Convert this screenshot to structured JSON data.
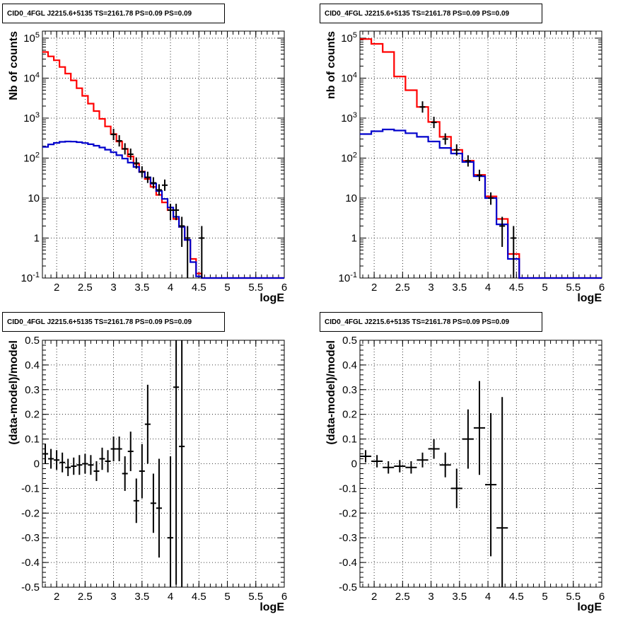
{
  "colors": {
    "data": "#000000",
    "total_model": "#ff0000",
    "source_model": "#0000cc",
    "grid": "#000000"
  },
  "chart_data": [
    {
      "type": "step",
      "title": "CID0_4FGL J2215.6+5135 TS=2161.78 PS=0.09 PS=0.09",
      "xlabel": "logE",
      "ylabel": "Nb of counts",
      "xlim": [
        1.75,
        6.0
      ],
      "ylim": [
        0.1,
        150000
      ],
      "yscale": "log",
      "grid": true,
      "x_ticks": [
        "2",
        "2.5",
        "3",
        "3.5",
        "4",
        "4.5",
        "5",
        "5.5",
        "6"
      ],
      "y_ticks": [
        "10^-1",
        "1",
        "10",
        "10^2",
        "10^3",
        "10^4",
        "10^5"
      ],
      "bin_edges": [
        1.75,
        1.85,
        1.95,
        2.05,
        2.15,
        2.25,
        2.35,
        2.45,
        2.55,
        2.65,
        2.75,
        2.85,
        2.95,
        3.05,
        3.15,
        3.25,
        3.35,
        3.45,
        3.55,
        3.65,
        3.75,
        3.85,
        3.95,
        4.05,
        4.15,
        4.25,
        4.35,
        4.45,
        4.55,
        4.65,
        4.75,
        4.85,
        4.95,
        5.05,
        5.15,
        5.25,
        5.35,
        5.45,
        5.55,
        5.65,
        5.75,
        5.85,
        5.95,
        6.0
      ],
      "series": [
        {
          "role": "total_model",
          "values": [
            45000,
            35000,
            28000,
            19000,
            13000,
            8800,
            5600,
            3600,
            2300,
            1500,
            960,
            620,
            400,
            260,
            170,
            110,
            72,
            46,
            30,
            19,
            12,
            7.8,
            5.0,
            3.0,
            1.9,
            0.9,
            0.3,
            0.13,
            0.1,
            0.1,
            0.1,
            0.1,
            0.1,
            0.1,
            0.1,
            0.1,
            0.1,
            0.1,
            0.1,
            0.1,
            0.1,
            0.1,
            0.1
          ]
        },
        {
          "role": "source_model",
          "values": [
            190,
            220,
            240,
            255,
            260,
            258,
            250,
            238,
            222,
            204,
            184,
            162,
            140,
            118,
            97,
            77,
            60,
            45,
            33,
            23,
            15,
            9.5,
            5.8,
            3.4,
            1.9,
            0.9,
            0.25,
            0.11,
            0.1,
            0.1,
            0.1,
            0.1,
            0.1,
            0.1,
            0.1,
            0.1,
            0.1,
            0.1,
            0.1,
            0.1,
            0.1,
            0.1,
            0.1
          ]
        },
        {
          "role": "data",
          "x": [
            3.0,
            3.1,
            3.2,
            3.3,
            3.4,
            3.5,
            3.6,
            3.7,
            3.8,
            3.9,
            4.0,
            4.1,
            4.2,
            4.3,
            4.55
          ],
          "y": [
            390,
            270,
            170,
            125,
            75,
            45,
            33,
            24,
            16,
            21,
            5,
            5,
            2,
            1,
            1
          ],
          "yerr": [
            20,
            16,
            13,
            11,
            9,
            7,
            6,
            5,
            4,
            4.5,
            2.2,
            2.2,
            1.4,
            1,
            1
          ]
        }
      ]
    },
    {
      "type": "step",
      "title": "CID0_4FGL J2215.6+5135 TS=2161.78 PS=0.09 PS=0.09",
      "xlabel": "logE",
      "ylabel": "nb of counts",
      "xlim": [
        1.75,
        6.0
      ],
      "ylim": [
        0.1,
        150000
      ],
      "yscale": "log",
      "grid": true,
      "x_ticks": [
        "2",
        "2.5",
        "3",
        "3.5",
        "4",
        "4.5",
        "5",
        "5.5",
        "6"
      ],
      "y_ticks": [
        "10^-1",
        "1",
        "10",
        "10^2",
        "10^3",
        "10^4",
        "10^5"
      ],
      "bin_edges": [
        1.75,
        1.95,
        2.15,
        2.35,
        2.55,
        2.75,
        2.95,
        3.15,
        3.35,
        3.55,
        3.75,
        3.95,
        4.15,
        4.35,
        4.55,
        4.75,
        4.95,
        5.15,
        5.35,
        5.55,
        5.75,
        5.95,
        6.0
      ],
      "series": [
        {
          "role": "total_model",
          "values": [
            95000,
            72000,
            45000,
            11000,
            5000,
            1900,
            800,
            340,
            160,
            86,
            38,
            11,
            3.0,
            0.4,
            0.1,
            0.1,
            0.1,
            0.1,
            0.1,
            0.1,
            0.1,
            0.1
          ]
        },
        {
          "role": "source_model",
          "values": [
            400,
            470,
            520,
            490,
            420,
            340,
            260,
            180,
            130,
            80,
            35,
            10,
            2.2,
            0.3,
            0.1,
            0.1,
            0.1,
            0.1,
            0.1,
            0.1,
            0.1,
            0.1
          ]
        },
        {
          "role": "data",
          "x": [
            2.85,
            3.05,
            3.25,
            3.45,
            3.65,
            3.85,
            4.05,
            4.25,
            4.45
          ],
          "y": [
            1900,
            780,
            300,
            160,
            85,
            37,
            10,
            2,
            1
          ],
          "yerr": [
            45,
            28,
            17,
            13,
            9,
            6,
            3.2,
            1.4,
            1
          ]
        }
      ]
    },
    {
      "type": "errorbar",
      "title": "CID0_4FGL J2215.6+5135 TS=2161.78 PS=0.09 PS=0.09",
      "xlabel": "logE",
      "ylabel": "(data-model)/model",
      "xlim": [
        1.75,
        6.0
      ],
      "ylim": [
        -0.5,
        0.5
      ],
      "grid": true,
      "x_ticks": [
        "2",
        "2.5",
        "3",
        "3.5",
        "4",
        "4.5",
        "5",
        "5.5",
        "6"
      ],
      "y_ticks": [
        "-0.5",
        "-0.4",
        "-0.3",
        "-0.2",
        "-0.1",
        "0",
        "0.1",
        "0.2",
        "0.3",
        "0.4",
        "0.5"
      ],
      "x_halfwidth": 0.05,
      "points": [
        {
          "x": 1.8,
          "y": 0.04,
          "err": 0.04
        },
        {
          "x": 1.9,
          "y": 0.02,
          "err": 0.04
        },
        {
          "x": 2.0,
          "y": 0.015,
          "err": 0.04
        },
        {
          "x": 2.1,
          "y": 0.005,
          "err": 0.04
        },
        {
          "x": 2.2,
          "y": -0.015,
          "err": 0.035
        },
        {
          "x": 2.3,
          "y": -0.01,
          "err": 0.035
        },
        {
          "x": 2.4,
          "y": -0.005,
          "err": 0.04
        },
        {
          "x": 2.5,
          "y": 0.0,
          "err": 0.04
        },
        {
          "x": 2.6,
          "y": -0.005,
          "err": 0.04
        },
        {
          "x": 2.7,
          "y": -0.03,
          "err": 0.04
        },
        {
          "x": 2.8,
          "y": 0.02,
          "err": 0.045
        },
        {
          "x": 2.9,
          "y": 0.01,
          "err": 0.045
        },
        {
          "x": 3.0,
          "y": 0.06,
          "err": 0.05
        },
        {
          "x": 3.1,
          "y": 0.06,
          "err": 0.05
        },
        {
          "x": 3.2,
          "y": -0.04,
          "err": 0.07
        },
        {
          "x": 3.3,
          "y": 0.05,
          "err": 0.08
        },
        {
          "x": 3.4,
          "y": -0.15,
          "err": 0.09
        },
        {
          "x": 3.5,
          "y": -0.03,
          "err": 0.11
        },
        {
          "x": 3.6,
          "y": 0.16,
          "err": 0.16
        },
        {
          "x": 3.7,
          "y": -0.16,
          "err": 0.12
        },
        {
          "x": 3.8,
          "y": -0.18,
          "err": 0.2
        },
        {
          "x": 4.0,
          "y": -0.3,
          "err": 0.33
        },
        {
          "x": 4.1,
          "y": 0.31,
          "err": 0.8
        },
        {
          "x": 4.2,
          "y": 0.07,
          "err": 0.9
        }
      ]
    },
    {
      "type": "errorbar",
      "title": "CID0_4FGL J2215.6+5135 TS=2161.78 PS=0.09 PS=0.09",
      "xlabel": "logE",
      "ylabel": "(data-model)/model",
      "xlim": [
        1.75,
        6.0
      ],
      "ylim": [
        -0.5,
        0.5
      ],
      "grid": true,
      "x_ticks": [
        "2",
        "2.5",
        "3",
        "3.5",
        "4",
        "4.5",
        "5",
        "5.5",
        "6"
      ],
      "y_ticks": [
        "-0.5",
        "-0.4",
        "-0.3",
        "-0.2",
        "-0.1",
        "0",
        "0.1",
        "0.2",
        "0.3",
        "0.4",
        "0.5"
      ],
      "x_halfwidth": 0.1,
      "points": [
        {
          "x": 1.85,
          "y": 0.03,
          "err": 0.025
        },
        {
          "x": 2.05,
          "y": 0.01,
          "err": 0.025
        },
        {
          "x": 2.25,
          "y": -0.015,
          "err": 0.025
        },
        {
          "x": 2.45,
          "y": -0.01,
          "err": 0.025
        },
        {
          "x": 2.65,
          "y": -0.015,
          "err": 0.025
        },
        {
          "x": 2.85,
          "y": 0.015,
          "err": 0.03
        },
        {
          "x": 3.05,
          "y": 0.06,
          "err": 0.04
        },
        {
          "x": 3.25,
          "y": -0.005,
          "err": 0.05
        },
        {
          "x": 3.45,
          "y": -0.1,
          "err": 0.08
        },
        {
          "x": 3.65,
          "y": 0.1,
          "err": 0.12
        },
        {
          "x": 3.85,
          "y": 0.145,
          "err": 0.19
        },
        {
          "x": 4.05,
          "y": -0.085,
          "err": 0.29
        },
        {
          "x": 4.25,
          "y": -0.26,
          "err": 0.53
        }
      ]
    }
  ]
}
